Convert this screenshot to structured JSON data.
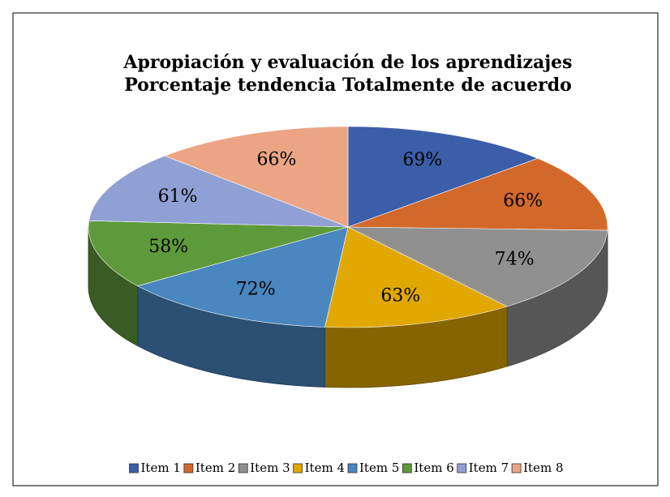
{
  "chart_data": {
    "type": "pie3d",
    "title": "Apropiación y evaluación de los aprendizajes",
    "subtitle": "Porcentaje tendencia Totalmente de acuerdo",
    "categories": [
      "Item 1",
      "Item 2",
      "Item 3",
      "Item 4",
      "Item 5",
      "Item 6",
      "Item 7",
      "Item 8"
    ],
    "values": [
      69,
      66,
      74,
      63,
      72,
      58,
      61,
      66
    ],
    "value_labels": [
      "69%",
      "66%",
      "74%",
      "63%",
      "72%",
      "58%",
      "61%",
      "66%"
    ],
    "colors": [
      "#3b5ea8",
      "#d2692a",
      "#909090",
      "#e0a800",
      "#4a86c0",
      "#5e9a3c",
      "#8fa0d4",
      "#eba584"
    ],
    "legend": "bottom"
  }
}
